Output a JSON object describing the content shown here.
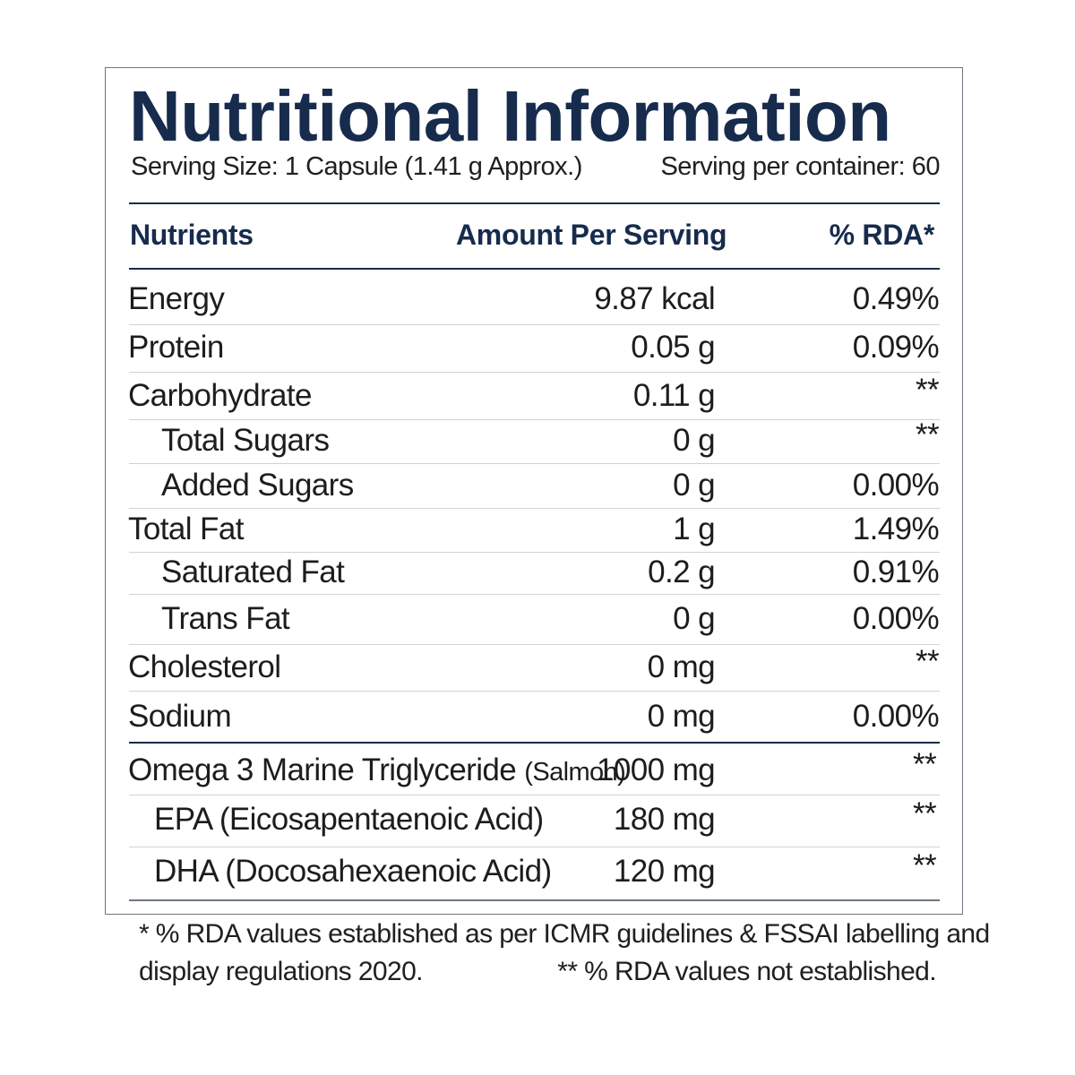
{
  "title": "Nutritional Information",
  "serving_size": "Serving Size: 1 Capsule (1.41 g Approx.)",
  "servings_per_container": "Serving per container: 60",
  "headers": {
    "nutrients": "Nutrients",
    "amount": "Amount Per Serving",
    "rda": "% RDA*"
  },
  "rows": [
    {
      "name": "Energy",
      "amount": "9.87 kcal",
      "rda": "0.49%"
    },
    {
      "name": "Protein",
      "amount": "0.05 g",
      "rda": "0.09%"
    },
    {
      "name": "Carbohydrate",
      "amount": "0.11 g",
      "rda": "**"
    },
    {
      "name": "Total Sugars",
      "amount": "0 g",
      "rda": "**"
    },
    {
      "name": "Added Sugars",
      "amount": "0 g",
      "rda": "0.00%"
    },
    {
      "name": "Total Fat",
      "amount": "1 g",
      "rda": "1.49%"
    },
    {
      "name": "Saturated Fat",
      "amount": "0.2 g",
      "rda": "0.91%"
    },
    {
      "name": "Trans Fat",
      "amount": "0 g",
      "rda": "0.00%"
    },
    {
      "name": "Cholesterol",
      "amount": "0 mg",
      "rda": "**"
    },
    {
      "name": "Sodium",
      "amount": "0 mg",
      "rda": "0.00%"
    }
  ],
  "omega": {
    "name": "Omega 3 Marine Triglyceride",
    "source": "(Salmon)",
    "amount": "1000 mg",
    "rda": "**"
  },
  "omega_sub": [
    {
      "name": "EPA (Eicosapentaenoic Acid)",
      "amount": "180 mg",
      "rda": "**"
    },
    {
      "name": "DHA (Docosahexaenoic Acid)",
      "amount": "120 mg",
      "rda": "**"
    }
  ],
  "footnote_line1": "* % RDA values established as per ICMR guidelines & FSSAI labelling and",
  "footnote_line2_left": "display regulations 2020.",
  "footnote_line2_right": "** % RDA values not established."
}
